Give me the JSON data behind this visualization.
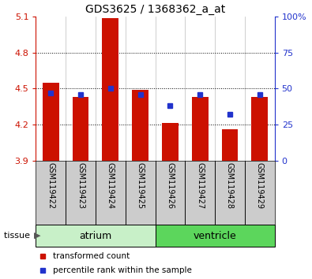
{
  "title": "GDS3625 / 1368362_a_at",
  "samples": [
    "GSM119422",
    "GSM119423",
    "GSM119424",
    "GSM119425",
    "GSM119426",
    "GSM119427",
    "GSM119428",
    "GSM119429"
  ],
  "red_values": [
    4.55,
    4.43,
    5.09,
    4.49,
    4.21,
    4.43,
    4.16,
    4.43
  ],
  "blue_values": [
    47,
    46,
    50,
    46,
    38,
    46,
    32,
    46
  ],
  "y_min": 3.9,
  "y_max": 5.1,
  "y_ticks_left": [
    3.9,
    4.2,
    4.5,
    4.8,
    5.1
  ],
  "y_ticks_right": [
    0,
    25,
    50,
    75,
    100
  ],
  "grid_lines": [
    4.2,
    4.5,
    4.8
  ],
  "tissues": [
    {
      "label": "atrium",
      "start": 0,
      "end": 3,
      "color": "#c8f0c8"
    },
    {
      "label": "ventricle",
      "start": 4,
      "end": 7,
      "color": "#5cd65c"
    }
  ],
  "bar_color": "#cc1100",
  "blue_color": "#2233cc",
  "bar_width": 0.55,
  "sample_box_color": "#cccccc",
  "left_axis_color": "#cc1100",
  "right_axis_color": "#2233cc"
}
